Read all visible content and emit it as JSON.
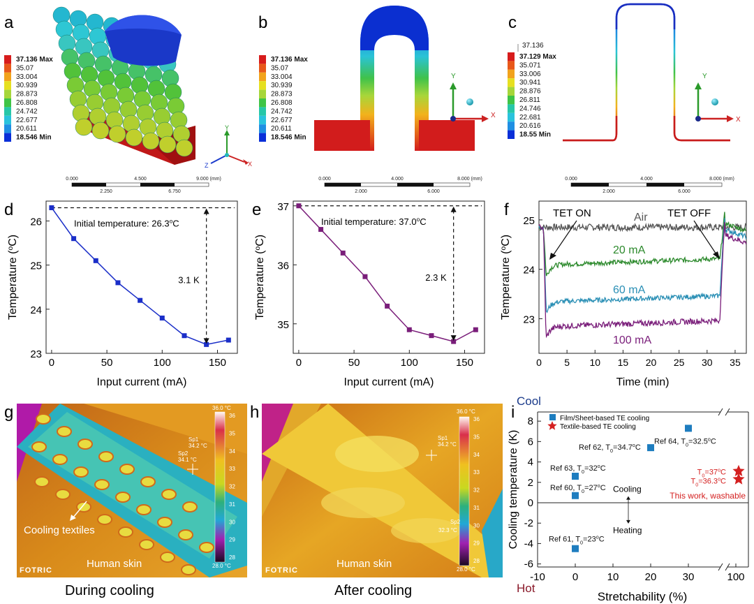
{
  "panel_labels": [
    "a",
    "b",
    "c",
    "d",
    "e",
    "f",
    "g",
    "h",
    "i"
  ],
  "legend_a": [
    "37.136 Max",
    "35.07",
    "33.004",
    "30.939",
    "28.873",
    "26.808",
    "24.742",
    "22.677",
    "20.611",
    "18.546 Min"
  ],
  "legend_b": [
    "37.136 Max",
    "35.07",
    "33.004",
    "30.939",
    "28.873",
    "26.808",
    "24.742",
    "22.677",
    "20.611",
    "18.546 Min"
  ],
  "legend_c_top": "37.136",
  "legend_c": [
    "37.129 Max",
    "35.071",
    "33.006",
    "30.941",
    "28.876",
    "26.811",
    "24.746",
    "22.681",
    "20.616",
    "18.55 Min"
  ],
  "legend_colors": [
    "#d71c1c",
    "#e8581a",
    "#f2a31c",
    "#e6e020",
    "#a6d63a",
    "#3fc446",
    "#27c7a8",
    "#2ac3dd",
    "#1f8fe3",
    "#0a2fd8"
  ],
  "scalebar_a": {
    "top": [
      "0.000",
      "4.500",
      "9.000 (mm)"
    ],
    "bottom": [
      "2.250",
      "6.750"
    ]
  },
  "scalebar_b": {
    "top": [
      "0.000",
      "4.000",
      "8.000 (mm)"
    ],
    "bottom": [
      "2.000",
      "6.000"
    ]
  },
  "scalebar_c": {
    "top": [
      "0.000",
      "4.000",
      "8.000 (mm)"
    ],
    "bottom": [
      "2.000",
      "6.000"
    ]
  },
  "axes_tri": {
    "x": "X",
    "y": "Y",
    "z": "Z"
  },
  "chart_data": [
    {
      "id": "d",
      "type": "line",
      "xlabel": "Input current (mA)",
      "ylabel": "Temperature (°C)",
      "xlim": [
        -5,
        168
      ],
      "ylim": [
        23,
        26.45
      ],
      "xticks": [
        0,
        50,
        100,
        150
      ],
      "yticks": [
        23,
        24,
        25,
        26
      ],
      "series": [
        {
          "name": "d",
          "x": [
            0,
            20,
            40,
            60,
            80,
            100,
            120,
            140,
            160
          ],
          "y": [
            26.3,
            25.6,
            25.1,
            24.6,
            24.2,
            23.8,
            23.4,
            23.2,
            23.3
          ]
        }
      ],
      "annotation": "Initial temperature: 26.3",
      "annotation_unit": "oC",
      "delta": "3.1 K"
    },
    {
      "id": "e",
      "type": "line",
      "xlabel": "Input current (mA)",
      "ylabel": "Temperature (°C)",
      "xlim": [
        -5,
        168
      ],
      "ylim": [
        34.5,
        37.08
      ],
      "xticks": [
        0,
        50,
        100,
        150
      ],
      "yticks": [
        35,
        36,
        37
      ],
      "series": [
        {
          "name": "e",
          "x": [
            0,
            20,
            40,
            60,
            80,
            100,
            120,
            140,
            160
          ],
          "y": [
            37.0,
            36.6,
            36.2,
            35.8,
            35.3,
            34.9,
            34.8,
            34.7,
            34.9
          ]
        }
      ],
      "annotation": "Initial temperature: 37.0",
      "annotation_unit": "oC",
      "delta": "2.3 K"
    },
    {
      "id": "f",
      "type": "line",
      "xlabel": "Time (min)",
      "ylabel": "Temperature (°C)",
      "xlim": [
        0,
        37
      ],
      "ylim": [
        22.3,
        25.38
      ],
      "xticks": [
        0,
        5,
        10,
        15,
        20,
        25,
        30,
        35
      ],
      "yticks": [
        23,
        24,
        25
      ],
      "series": [
        {
          "name": "Air",
          "color": "#555555",
          "base": 24.85,
          "drop": 0,
          "noise": 0.07
        },
        {
          "name": "20 mA",
          "color": "#2d8a2d",
          "base": 24.1,
          "drop": 0.72,
          "noise": 0.05
        },
        {
          "name": "60 mA",
          "color": "#2a8fb5",
          "base": 23.35,
          "drop": 1.45,
          "noise": 0.05
        },
        {
          "name": "100 mA",
          "color": "#7a1e7a",
          "base": 22.85,
          "drop": 2.15,
          "noise": 0.06
        }
      ],
      "on_label": "TET ON",
      "off_label": "TET OFF"
    },
    {
      "id": "i",
      "type": "scatter",
      "xlabel": "Stretchability (%)",
      "ylabel": "Cooling temperature (K)",
      "xticks": [
        "-10",
        "0",
        "10",
        "20",
        "30",
        "100"
      ],
      "yticks": [
        -6,
        -4,
        -2,
        0,
        2,
        4,
        6,
        8
      ],
      "series": [
        {
          "name": "Film/Sheet-based TE cooling",
          "marker": "square",
          "color": "#1e7dbf",
          "points": [
            {
              "x": 0,
              "y": 2.6,
              "label": "Ref 63, T",
              "sub": "0",
              "rest": "=32",
              "sup": "o",
              "unit": "C"
            },
            {
              "x": 0,
              "y": 0.7,
              "label": "Ref 60, T",
              "sub": "0",
              "rest": "=27",
              "sup": "o",
              "unit": "C"
            },
            {
              "x": 0,
              "y": -4.5,
              "label": "Ref 61, T",
              "sub": "0",
              "rest": "=23",
              "sup": "o",
              "unit": "C"
            },
            {
              "x": 20,
              "y": 5.4,
              "label": "Ref 62, T",
              "sub": "0",
              "rest": "=34.7",
              "sup": "o",
              "unit": "C"
            },
            {
              "x": 30,
              "y": 7.3,
              "label": "Ref 64, T",
              "sub": "0",
              "rest": "=32.5",
              "sup": "o",
              "unit": "C"
            }
          ]
        },
        {
          "name": "Textile-based TE cooling",
          "marker": "star",
          "color": "#d42020",
          "points": [
            {
              "x": 100,
              "y": 3.1,
              "label": "T",
              "sub": "0",
              "rest": "=37",
              "sup": "o",
              "unit": "C"
            },
            {
              "x": 100,
              "y": 2.3,
              "label": "T",
              "sub": "0",
              "rest": "=36.3",
              "sup": "o",
              "unit": "C"
            }
          ]
        }
      ],
      "cool": "Cool",
      "hot": "Hot",
      "cooling": "Cooling",
      "heating": "Heating",
      "this_work": "This work, washable"
    }
  ],
  "thermal_g": {
    "scale_max": "36.0 °C",
    "scale_min": "28.0 °C",
    "ticks": [
      "36",
      "35",
      "34",
      "33",
      "32",
      "31",
      "30",
      "29",
      "28"
    ],
    "sp1": "Sp1",
    "sp1_val": "34.2 °C",
    "sp2": "Sp2",
    "sp2_val": "34.1 °C",
    "annotation": "Cooling textiles",
    "skin": "Human skin",
    "brand": "FOTRIC",
    "caption": "During cooling"
  },
  "thermal_h": {
    "scale_max": "36.0 °C",
    "scale_min": "28.0 °C",
    "ticks": [
      "36",
      "35",
      "34",
      "33",
      "32",
      "31",
      "30",
      "29",
      "28"
    ],
    "sp1": "Sp1",
    "sp1_val": "34.2 °C",
    "sp2": "Sp2",
    "sp2_val": "32.3 °C",
    "skin": "Human skin",
    "brand": "FOTRIC",
    "caption": "After cooling"
  }
}
